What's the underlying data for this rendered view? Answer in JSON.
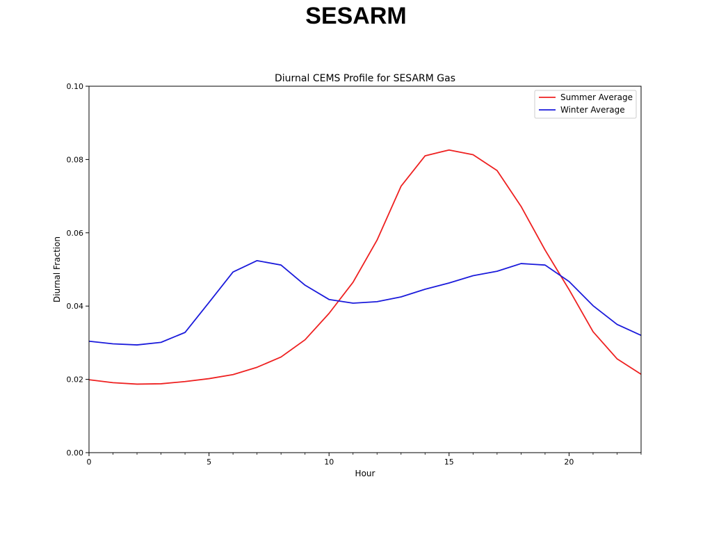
{
  "slide": {
    "title": "SESARM"
  },
  "chart_data": {
    "type": "line",
    "title": "Diurnal CEMS Profile for SESARM Gas",
    "xlabel": "Hour",
    "ylabel": "Diurnal Fraction",
    "xlim": [
      0,
      23
    ],
    "ylim": [
      0,
      0.1
    ],
    "xticks": [
      0,
      5,
      10,
      15,
      20
    ],
    "xticks_minor": [
      1,
      2,
      3,
      4,
      6,
      7,
      8,
      9,
      11,
      12,
      13,
      14,
      16,
      17,
      18,
      19,
      21,
      22,
      23
    ],
    "yticks": [
      0.0,
      0.02,
      0.04,
      0.06,
      0.08,
      0.1
    ],
    "ytick_labels": [
      "0.00",
      "0.02",
      "0.04",
      "0.06",
      "0.08",
      "0.10"
    ],
    "grid": false,
    "legend": "top-right",
    "x": [
      0,
      1,
      2,
      3,
      4,
      5,
      6,
      7,
      8,
      9,
      10,
      11,
      12,
      13,
      14,
      15,
      16,
      17,
      18,
      19,
      20,
      21,
      22,
      23
    ],
    "series": [
      {
        "name": "Summer Average",
        "color": "#ee2020",
        "values": [
          0.0199,
          0.0191,
          0.0187,
          0.0188,
          0.0194,
          0.0202,
          0.0213,
          0.0233,
          0.0261,
          0.0308,
          0.038,
          0.0465,
          0.058,
          0.0727,
          0.081,
          0.0826,
          0.0813,
          0.077,
          0.0672,
          0.0553,
          0.0445,
          0.033,
          0.0256,
          0.0214
        ]
      },
      {
        "name": "Winter Average",
        "color": "#1a1adb",
        "values": [
          0.0304,
          0.0297,
          0.0294,
          0.0301,
          0.0328,
          0.041,
          0.0493,
          0.0524,
          0.0512,
          0.0457,
          0.0418,
          0.0408,
          0.0412,
          0.0425,
          0.0446,
          0.0463,
          0.0483,
          0.0495,
          0.0516,
          0.0512,
          0.0467,
          0.0401,
          0.035,
          0.032
        ]
      }
    ]
  }
}
